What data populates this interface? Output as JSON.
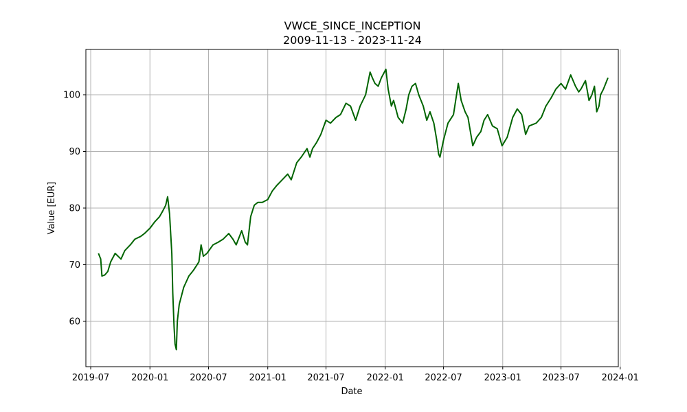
{
  "chart_data": {
    "type": "line",
    "title": "VWCE_SINCE_INCEPTION",
    "subtitle": "2009-11-13 - 2023-11-24",
    "xlabel": "Date",
    "ylabel": "Value [EUR]",
    "xlim": [
      "2019-06-16",
      "2023-12-26"
    ],
    "ylim": [
      52,
      108
    ],
    "x_ticks": [
      "2019-07",
      "2020-01",
      "2020-07",
      "2021-01",
      "2021-07",
      "2022-01",
      "2022-07",
      "2023-01",
      "2023-07",
      "2024-01"
    ],
    "y_ticks": [
      60,
      70,
      80,
      90,
      100
    ],
    "grid": true,
    "line_color": "#006400",
    "series": [
      {
        "x": [
          "2019-07-25",
          "2019-08-01",
          "2019-08-05",
          "2019-08-14",
          "2019-08-23",
          "2019-09-01",
          "2019-09-15",
          "2019-10-03",
          "2019-10-15",
          "2019-11-01",
          "2019-11-15",
          "2019-12-03",
          "2019-12-15",
          "2020-01-02",
          "2020-01-15",
          "2020-01-31",
          "2020-02-10",
          "2020-02-19",
          "2020-02-25",
          "2020-03-02",
          "2020-03-09",
          "2020-03-12",
          "2020-03-16",
          "2020-03-19",
          "2020-03-23",
          "2020-03-26",
          "2020-04-01",
          "2020-04-15",
          "2020-05-01",
          "2020-05-15",
          "2020-06-01",
          "2020-06-08",
          "2020-06-15",
          "2020-06-26",
          "2020-07-15",
          "2020-08-01",
          "2020-08-15",
          "2020-09-02",
          "2020-09-15",
          "2020-09-25",
          "2020-10-12",
          "2020-10-23",
          "2020-10-30",
          "2020-11-09",
          "2020-11-20",
          "2020-12-01",
          "2020-12-15",
          "2021-01-01",
          "2021-01-15",
          "2021-01-29",
          "2021-02-15",
          "2021-03-04",
          "2021-03-15",
          "2021-04-01",
          "2021-04-15",
          "2021-05-03",
          "2021-05-12",
          "2021-05-20",
          "2021-06-01",
          "2021-06-15",
          "2021-07-01",
          "2021-07-15",
          "2021-08-01",
          "2021-08-15",
          "2021-09-01",
          "2021-09-15",
          "2021-10-01",
          "2021-10-15",
          "2021-11-01",
          "2021-11-15",
          "2021-11-22",
          "2021-11-30",
          "2021-12-10",
          "2021-12-20",
          "2022-01-03",
          "2022-01-10",
          "2022-01-20",
          "2022-01-27",
          "2022-02-10",
          "2022-02-24",
          "2022-03-07",
          "2022-03-15",
          "2022-03-25",
          "2022-04-05",
          "2022-04-15",
          "2022-04-29",
          "2022-05-10",
          "2022-05-20",
          "2022-06-01",
          "2022-06-10",
          "2022-06-16",
          "2022-06-20",
          "2022-07-01",
          "2022-07-15",
          "2022-08-01",
          "2022-08-16",
          "2022-08-25",
          "2022-09-06",
          "2022-09-15",
          "2022-09-30",
          "2022-10-12",
          "2022-10-25",
          "2022-11-04",
          "2022-11-15",
          "2022-11-30",
          "2022-12-15",
          "2022-12-30",
          "2023-01-15",
          "2023-02-01",
          "2023-02-15",
          "2023-03-01",
          "2023-03-13",
          "2023-03-24",
          "2023-04-15",
          "2023-05-01",
          "2023-05-15",
          "2023-06-01",
          "2023-06-15",
          "2023-07-01",
          "2023-07-15",
          "2023-07-31",
          "2023-08-15",
          "2023-08-25",
          "2023-09-01",
          "2023-09-15",
          "2023-09-26",
          "2023-10-05",
          "2023-10-13",
          "2023-10-20",
          "2023-10-27",
          "2023-11-01",
          "2023-11-10",
          "2023-11-17",
          "2023-11-24"
        ],
        "y": [
          72.0,
          71.0,
          68.0,
          68.2,
          68.8,
          70.5,
          72.0,
          71.0,
          72.5,
          73.5,
          74.5,
          75.0,
          75.5,
          76.5,
          77.5,
          78.5,
          79.5,
          80.5,
          82.0,
          79.0,
          72.0,
          65.0,
          59.0,
          56.0,
          55.0,
          60.0,
          63.0,
          66.0,
          68.0,
          69.0,
          70.5,
          73.5,
          71.5,
          72.0,
          73.5,
          74.0,
          74.5,
          75.5,
          74.5,
          73.5,
          76.0,
          74.0,
          73.5,
          78.5,
          80.5,
          81.0,
          81.0,
          81.5,
          83.0,
          84.0,
          85.0,
          86.0,
          85.0,
          88.0,
          89.0,
          90.5,
          89.0,
          90.5,
          91.5,
          93.0,
          95.5,
          95.0,
          96.0,
          96.5,
          98.5,
          98.0,
          95.5,
          98.0,
          100.0,
          104.0,
          103.0,
          102.0,
          101.5,
          103.0,
          104.5,
          101.0,
          98.0,
          99.0,
          96.0,
          95.0,
          97.5,
          100.0,
          101.5,
          102.0,
          100.0,
          98.0,
          95.5,
          97.0,
          95.0,
          92.0,
          89.5,
          89.0,
          92.0,
          95.0,
          96.5,
          102.0,
          99.0,
          97.0,
          96.0,
          91.0,
          92.5,
          93.5,
          95.5,
          96.5,
          94.5,
          94.0,
          91.0,
          92.5,
          96.0,
          97.5,
          96.5,
          93.0,
          94.5,
          95.0,
          96.0,
          98.0,
          99.5,
          101.0,
          102.0,
          101.0,
          103.5,
          101.5,
          100.5,
          101.0,
          102.5,
          99.0,
          100.0,
          101.5,
          97.0,
          98.0,
          100.0,
          101.0,
          102.0,
          103.0
        ]
      }
    ]
  }
}
